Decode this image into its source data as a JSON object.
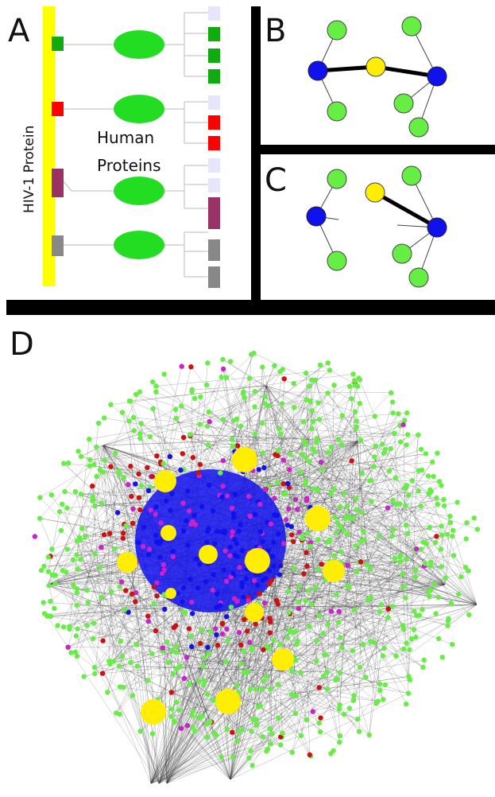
{
  "panels": {
    "a": {
      "letter": "A",
      "hiv_label": "HIV-1 Protein",
      "human_label_1": "Human",
      "human_label_2": "Proteins"
    },
    "b": {
      "letter": "B"
    },
    "c": {
      "letter": "C"
    },
    "d": {
      "letter": "D"
    }
  },
  "colors": {
    "hiv_backbone": "#ffff00",
    "human_protein": "#22dd22",
    "green_tag": "#11aa11",
    "red_tag": "#ff0000",
    "purple_tag": "#993366",
    "gray_tag": "#888888",
    "unlinked_tag": "#e6e6fa",
    "network_green": "#66ee44",
    "network_blue": "#1111ee",
    "network_yellow": "#ffee00",
    "network_red": "#cc1111",
    "network_magenta": "#cc22cc",
    "divider": "#000000"
  },
  "network_legend_nodes": {
    "hiv_node_color": "yellow",
    "hub_node_color": "blue",
    "leaf_node_color": "green"
  }
}
